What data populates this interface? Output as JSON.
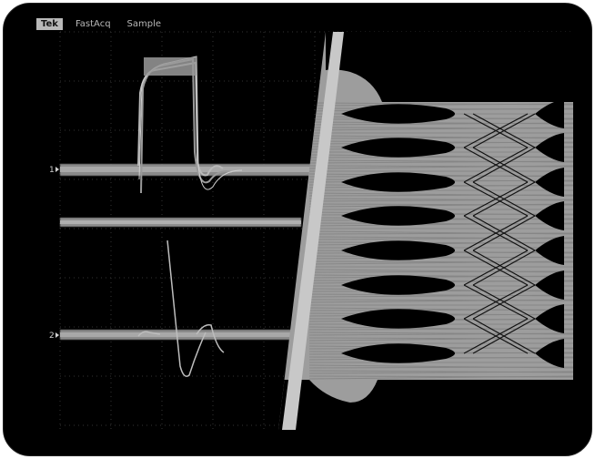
{
  "menu": {
    "brand": "Tek",
    "acquisition_mode": "FastAcq",
    "sampling_mode": "Sample"
  },
  "channels": [
    {
      "label": "1"
    },
    {
      "label": "2"
    }
  ],
  "colors": {
    "bezel": "#000000",
    "trace": "#9a9a9a",
    "divider": "#c8c8c8",
    "grid": "#3a3a3a"
  }
}
